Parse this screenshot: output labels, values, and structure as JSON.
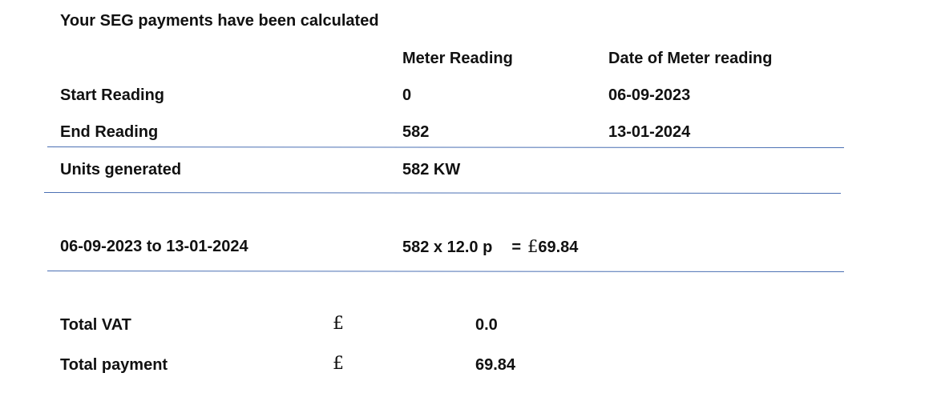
{
  "title": "Your SEG payments have been calculated",
  "columns": {
    "meter_reading": "Meter Reading",
    "date_of_meter_reading": "Date of Meter reading"
  },
  "readings": [
    {
      "label": "Start Reading",
      "value": "0",
      "date": "06-09-2023"
    },
    {
      "label": "End Reading",
      "value": "582",
      "date": "13-01-2024"
    }
  ],
  "units": {
    "label": "Units generated",
    "value": "582 KW"
  },
  "period": {
    "label": "06-09-2023 to 13-01-2024",
    "calculation": "582 x 12.0 p",
    "equals": "=",
    "currency": "£",
    "amount": "69.84"
  },
  "totals": [
    {
      "label": "Total VAT",
      "currency": "£",
      "value": "0.0"
    },
    {
      "label": "Total payment",
      "currency": "£",
      "value": "69.84"
    }
  ],
  "colors": {
    "rule": "#4a6fb3",
    "text": "#111111"
  }
}
